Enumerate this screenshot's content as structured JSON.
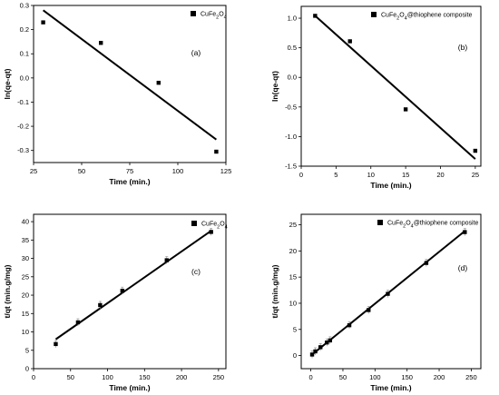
{
  "chart_data": [
    {
      "type": "scatter",
      "panel_label": "(a)",
      "xlabel": "Time (min.)",
      "ylabel": "ln(qe-qt)",
      "xlim": [
        25,
        125
      ],
      "ylim": [
        -0.35,
        0.3
      ],
      "xticks": [
        25,
        50,
        75,
        100,
        125
      ],
      "yticks": [
        -0.3,
        -0.2,
        -0.1,
        0.0,
        0.1,
        0.2,
        0.3
      ],
      "yticks_text": [
        "-0.3",
        "-0.2",
        "-0.1",
        "0.0",
        "0.1",
        "0.2",
        "0.3"
      ],
      "series": [
        {
          "name": "CuFe2O4",
          "x": [
            30,
            60,
            90,
            120
          ],
          "y": [
            0.23,
            0.145,
            -0.02,
            -0.305
          ],
          "fit": [
            [
              30,
              0.28
            ],
            [
              120,
              -0.255
            ]
          ]
        }
      ],
      "legend_position": "top-right",
      "grid": false
    },
    {
      "type": "scatter",
      "panel_label": "(b)",
      "xlabel": "Time (min.)",
      "ylabel": "ln(qe-qt)",
      "xlim": [
        0,
        25.8
      ],
      "ylim": [
        -1.5,
        1.2
      ],
      "xticks": [
        0,
        5,
        10,
        15,
        20,
        25
      ],
      "yticks": [
        -1.5,
        -1.0,
        -0.5,
        0.0,
        0.5,
        1.0
      ],
      "yticks_text": [
        "-1.5",
        "-1.0",
        "-0.5",
        "0.0",
        "0.5",
        "1.0"
      ],
      "series": [
        {
          "name": "CuFe2O4@thiophene composite",
          "x": [
            2,
            7,
            15,
            25
          ],
          "y": [
            1.04,
            0.61,
            -0.54,
            -1.24
          ],
          "fit": [
            [
              2,
              1.04
            ],
            [
              25,
              -1.38
            ]
          ]
        }
      ],
      "legend_position": "top-right",
      "grid": false
    },
    {
      "type": "scatter",
      "panel_label": "(c)",
      "xlabel": "Time (min.)",
      "ylabel": "t/qt (min.g/mg)",
      "xlim": [
        0,
        260
      ],
      "ylim": [
        0,
        42
      ],
      "xticks": [
        0,
        50,
        100,
        150,
        200,
        250
      ],
      "yticks": [
        0,
        5,
        10,
        15,
        20,
        25,
        30,
        35,
        40
      ],
      "series": [
        {
          "name": "CuFe2O4",
          "x": [
            30,
            60,
            90,
            120,
            180,
            240
          ],
          "y": [
            6.7,
            12.6,
            17.3,
            21.2,
            29.5,
            37.2
          ],
          "fit": [
            [
              30,
              8.0
            ],
            [
              240,
              37.5
            ]
          ]
        }
      ],
      "legend_position": "top-right",
      "grid": false
    },
    {
      "type": "scatter",
      "panel_label": "(d)",
      "xlabel": "Time (min.)",
      "ylabel": "t/qt (min.g/mg)",
      "xlim": [
        -15,
        265
      ],
      "ylim": [
        -2.5,
        27
      ],
      "xticks": [
        0,
        50,
        100,
        150,
        200,
        250
      ],
      "yticks": [
        0,
        5,
        10,
        15,
        20,
        25
      ],
      "series": [
        {
          "name": "CuFe2O4@thiophene composite",
          "x": [
            2,
            7,
            15,
            25,
            30,
            60,
            90,
            120,
            180,
            240
          ],
          "y": [
            0.2,
            0.8,
            1.6,
            2.5,
            2.9,
            5.8,
            8.7,
            11.8,
            17.7,
            23.6
          ],
          "fit": [
            [
              2,
              0.2
            ],
            [
              240,
              23.8
            ]
          ]
        }
      ],
      "legend_position": "top-left",
      "grid": false
    }
  ]
}
